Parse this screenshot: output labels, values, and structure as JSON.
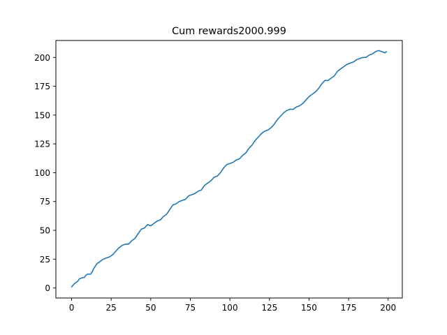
{
  "chart_data": {
    "type": "line",
    "title": "Cum rewards2000.999",
    "xlabel": "",
    "ylabel": "",
    "xlim": [
      -9.95,
      208.95
    ],
    "ylim": [
      -8.7,
      214.7
    ],
    "grid": false,
    "x_ticks": [
      0,
      25,
      50,
      75,
      100,
      125,
      150,
      175,
      200
    ],
    "y_ticks": [
      0,
      25,
      50,
      75,
      100,
      125,
      150,
      175,
      200
    ],
    "x_tick_labels": [
      "0",
      "25",
      "50",
      "75",
      "100",
      "125",
      "150",
      "175",
      "200"
    ],
    "y_tick_labels": [
      "0",
      "25",
      "50",
      "75",
      "100",
      "125",
      "150",
      "175",
      "200"
    ],
    "series": [
      {
        "color": "#1f77b4",
        "points": [
          [
            0,
            1
          ],
          [
            2,
            4
          ],
          [
            4,
            6
          ],
          [
            5,
            8
          ],
          [
            7,
            9
          ],
          [
            8,
            9
          ],
          [
            9,
            11
          ],
          [
            10,
            12
          ],
          [
            11,
            12
          ],
          [
            12,
            12
          ],
          [
            13,
            14
          ],
          [
            14,
            17
          ],
          [
            16,
            21
          ],
          [
            18,
            23
          ],
          [
            20,
            25
          ],
          [
            22,
            26
          ],
          [
            24,
            27
          ],
          [
            26,
            29
          ],
          [
            28,
            32
          ],
          [
            30,
            35
          ],
          [
            32,
            37
          ],
          [
            34,
            38
          ],
          [
            36,
            38
          ],
          [
            38,
            41
          ],
          [
            40,
            43
          ],
          [
            42,
            47
          ],
          [
            44,
            51
          ],
          [
            46,
            52
          ],
          [
            48,
            55
          ],
          [
            50,
            54
          ],
          [
            52,
            56
          ],
          [
            54,
            58
          ],
          [
            56,
            59
          ],
          [
            58,
            62
          ],
          [
            60,
            64
          ],
          [
            62,
            68
          ],
          [
            64,
            72
          ],
          [
            66,
            73
          ],
          [
            68,
            75
          ],
          [
            70,
            76
          ],
          [
            72,
            77
          ],
          [
            74,
            80
          ],
          [
            76,
            81
          ],
          [
            78,
            82
          ],
          [
            80,
            84
          ],
          [
            82,
            85
          ],
          [
            84,
            89
          ],
          [
            86,
            91
          ],
          [
            88,
            93
          ],
          [
            90,
            96
          ],
          [
            92,
            97
          ],
          [
            94,
            100
          ],
          [
            96,
            104
          ],
          [
            98,
            107
          ],
          [
            100,
            108
          ],
          [
            102,
            109
          ],
          [
            104,
            111
          ],
          [
            106,
            112
          ],
          [
            108,
            115
          ],
          [
            110,
            117
          ],
          [
            112,
            121
          ],
          [
            114,
            124
          ],
          [
            116,
            128
          ],
          [
            118,
            131
          ],
          [
            120,
            134
          ],
          [
            122,
            136
          ],
          [
            124,
            137
          ],
          [
            126,
            139
          ],
          [
            128,
            142
          ],
          [
            130,
            146
          ],
          [
            132,
            149
          ],
          [
            134,
            152
          ],
          [
            136,
            154
          ],
          [
            138,
            155
          ],
          [
            140,
            155
          ],
          [
            142,
            157
          ],
          [
            144,
            158
          ],
          [
            146,
            160
          ],
          [
            148,
            163
          ],
          [
            150,
            166
          ],
          [
            152,
            168
          ],
          [
            154,
            170
          ],
          [
            156,
            173
          ],
          [
            158,
            177
          ],
          [
            160,
            180
          ],
          [
            162,
            180
          ],
          [
            164,
            182
          ],
          [
            166,
            184
          ],
          [
            168,
            188
          ],
          [
            170,
            190
          ],
          [
            172,
            192
          ],
          [
            174,
            194
          ],
          [
            176,
            195
          ],
          [
            178,
            196
          ],
          [
            180,
            198
          ],
          [
            182,
            199
          ],
          [
            184,
            200
          ],
          [
            186,
            200
          ],
          [
            188,
            202
          ],
          [
            190,
            203
          ],
          [
            192,
            205
          ],
          [
            194,
            206
          ],
          [
            196,
            205
          ],
          [
            198,
            204
          ],
          [
            199,
            205
          ]
        ]
      }
    ]
  }
}
